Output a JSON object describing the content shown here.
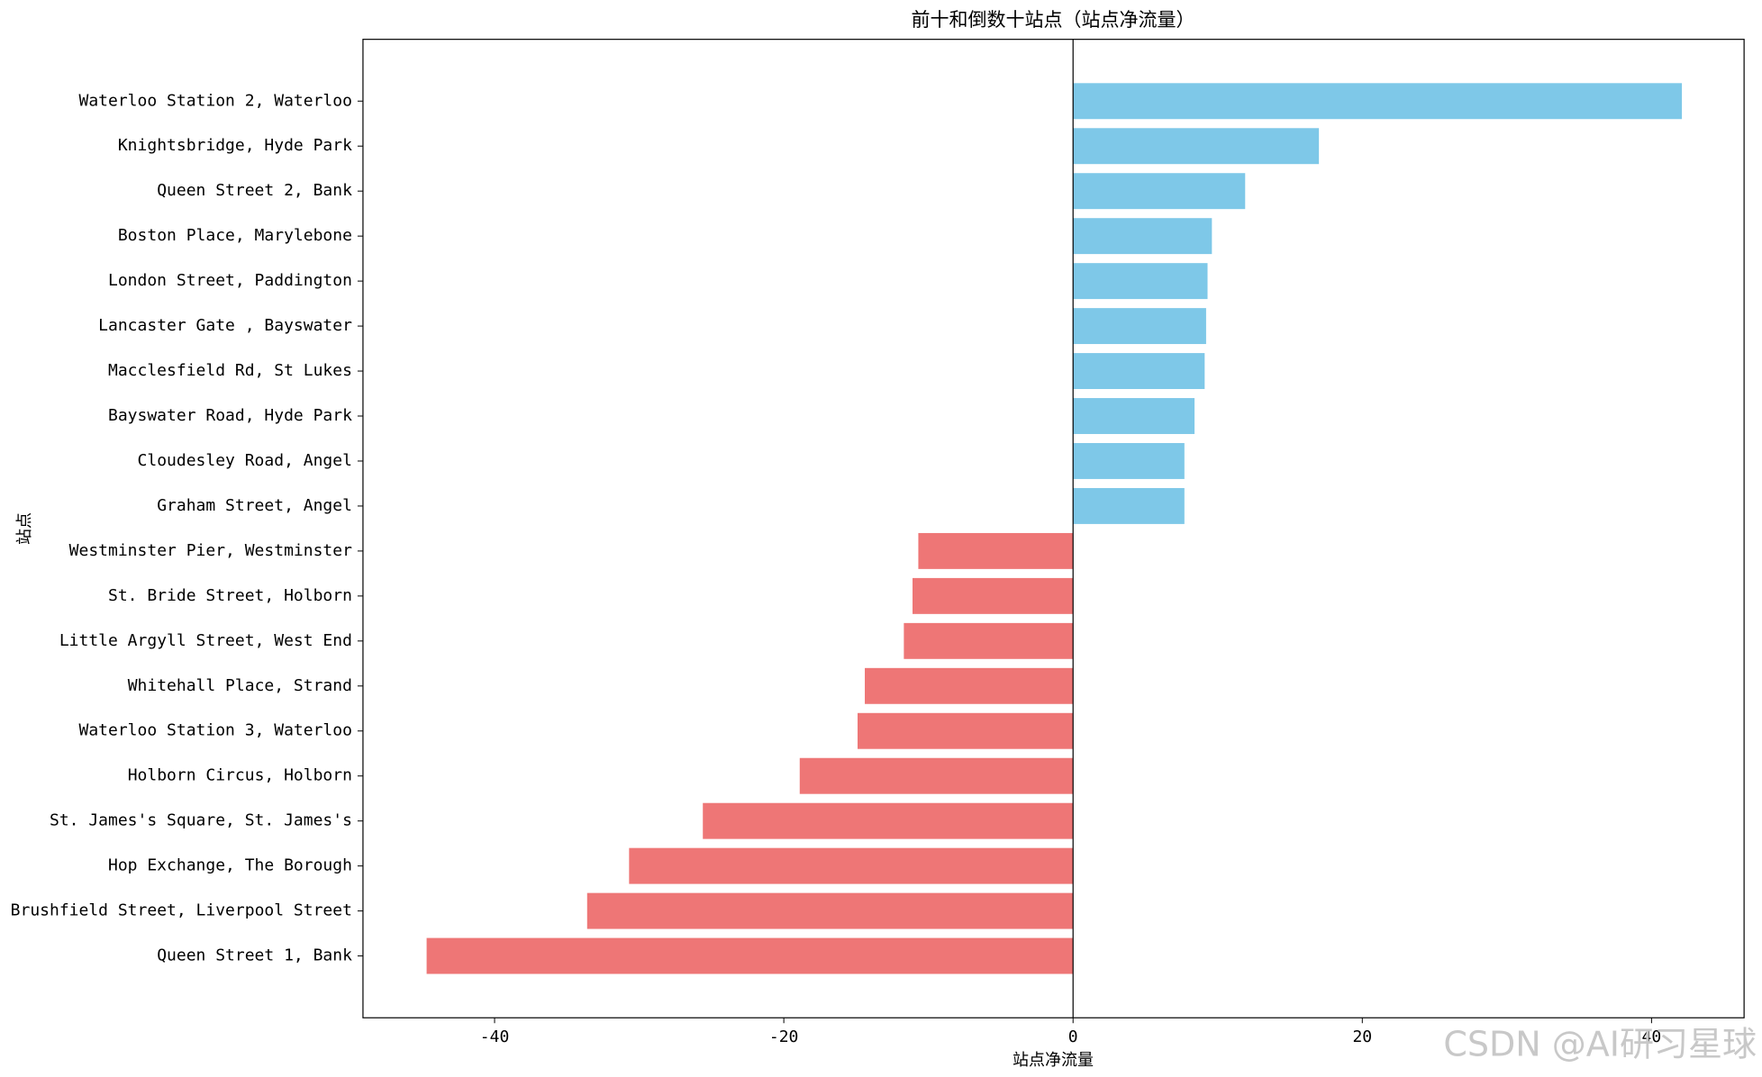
{
  "chart_data": {
    "type": "barh",
    "title": "前十和倒数十站点（站点净流量）",
    "xlabel": "站点净流量",
    "ylabel": "站点",
    "watermark": "CSDN @AI研习星球",
    "categories": [
      "Waterloo Station 2, Waterloo",
      "Knightsbridge, Hyde Park",
      "Queen Street 2, Bank",
      "Boston Place, Marylebone",
      "London Street, Paddington",
      "Lancaster Gate , Bayswater",
      "Macclesfield Rd, St Lukes",
      "Bayswater Road, Hyde Park",
      "Cloudesley Road, Angel",
      "Graham Street, Angel",
      "Westminster Pier, Westminster",
      "St. Bride Street, Holborn",
      "Little Argyll Street, West End",
      "Whitehall Place, Strand",
      "Waterloo Station 3, Waterloo",
      "Holborn Circus, Holborn",
      "St. James's Square, St. James's",
      "Hop Exchange, The Borough",
      "Brushfield Street, Liverpool Street",
      "Queen Street 1, Bank"
    ],
    "values": [
      42.1,
      17.0,
      11.9,
      9.6,
      9.3,
      9.2,
      9.1,
      8.4,
      7.7,
      7.7,
      -10.7,
      -11.1,
      -11.7,
      -14.4,
      -14.9,
      -18.9,
      -25.6,
      -30.7,
      -33.6,
      -44.7
    ],
    "colors": [
      "#7ec8e8",
      "#7ec8e8",
      "#7ec8e8",
      "#7ec8e8",
      "#7ec8e8",
      "#7ec8e8",
      "#7ec8e8",
      "#7ec8e8",
      "#7ec8e8",
      "#7ec8e8",
      "#ee7676",
      "#ee7676",
      "#ee7676",
      "#ee7676",
      "#ee7676",
      "#ee7676",
      "#ee7676",
      "#ee7676",
      "#ee7676",
      "#ee7676"
    ],
    "xlim": [
      -49.1,
      46.4
    ],
    "xticks": [
      -40,
      -20,
      0,
      20,
      40
    ],
    "grid": false
  }
}
